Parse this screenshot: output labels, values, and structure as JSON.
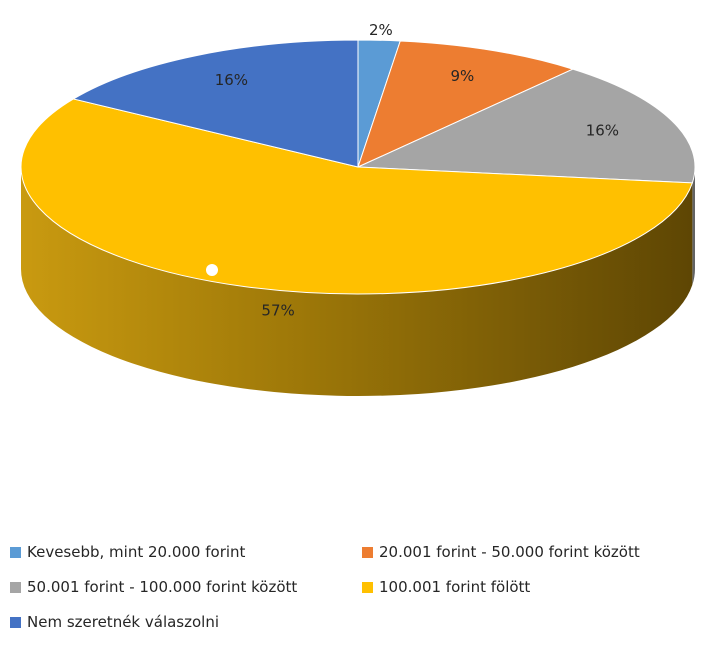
{
  "chart_data": {
    "type": "pie",
    "style": "3d",
    "title": "",
    "slices": [
      {
        "label": "Kevesebb, mint 20.000 forint",
        "value": 2,
        "display": "2%",
        "color": "#5B9BD5"
      },
      {
        "label": "20.001 forint - 50.000 forint között",
        "value": 9,
        "display": "9%",
        "color": "#ED7D31"
      },
      {
        "label": "50.001 forint - 100.000 forint között",
        "value": 16,
        "display": "16%",
        "color": "#A5A5A5"
      },
      {
        "label": "100.001 forint fölött",
        "value": 57,
        "display": "57%",
        "color": "#FFC000"
      },
      {
        "label": "Nem szeretnék válaszolni",
        "value": 16,
        "display": "16%",
        "color": "#4472C4"
      }
    ],
    "legend_position": "bottom"
  }
}
